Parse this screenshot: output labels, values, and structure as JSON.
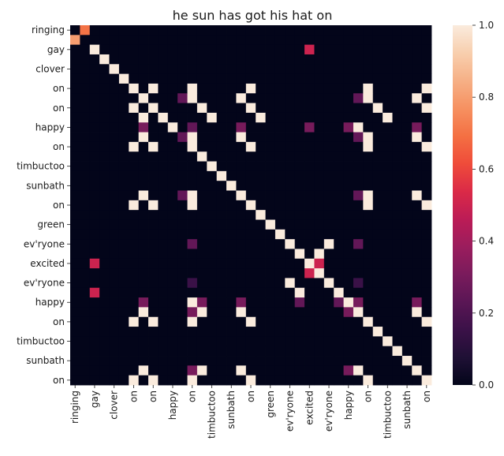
{
  "chart_data": {
    "type": "heatmap",
    "title": "he sun has got his hat on",
    "xlabel": "",
    "ylabel": "",
    "size": 37,
    "tick_labels": [
      "ringing",
      "gay",
      "clover",
      "on",
      "on",
      "happy",
      "on",
      "timbuctoo",
      "sunbath",
      "on",
      "green",
      "ev'ryone",
      "excited",
      "ev'ryone",
      "happy",
      "on",
      "timbuctoo",
      "sunbath",
      "on"
    ],
    "tick_indices": [
      0,
      2,
      4,
      6,
      8,
      10,
      12,
      14,
      16,
      18,
      20,
      22,
      24,
      26,
      28,
      30,
      32,
      34,
      36
    ],
    "colorbar": {
      "min": 0.0,
      "max": 1.0,
      "ticks": [
        "0.0",
        "0.2",
        "0.4",
        "0.6",
        "0.8",
        "1.0"
      ]
    },
    "colormap": [
      "#03051a",
      "#1f1035",
      "#3b1148",
      "#5a1655",
      "#7a1b5c",
      "#9b1d5d",
      "#bc1c56",
      "#db2a47",
      "#ef4c3a",
      "#f47043",
      "#f69161",
      "#f6b086",
      "#f8cfae",
      "#faebdd"
    ],
    "matrix": [
      [
        0,
        0.7,
        0,
        0,
        0,
        0,
        0,
        0,
        0,
        0,
        0,
        0,
        0,
        0,
        0,
        0,
        0,
        0,
        0,
        0,
        0,
        0,
        0,
        0,
        0,
        0,
        0,
        0,
        0,
        0,
        0,
        0,
        0,
        0,
        0,
        0,
        0
      ],
      [
        0.8,
        0,
        0,
        0,
        0,
        0,
        0,
        0,
        0,
        0,
        0,
        0,
        0,
        0,
        0,
        0,
        0,
        0,
        0,
        0,
        0,
        0,
        0,
        0,
        0,
        0,
        0,
        0,
        0,
        0,
        0,
        0,
        0,
        0,
        0,
        0,
        0
      ],
      [
        0,
        0,
        1,
        0,
        0,
        0,
        0,
        0,
        0,
        0,
        0,
        0,
        0,
        0,
        0,
        0,
        0,
        0,
        0,
        0,
        0,
        0,
        0,
        0,
        0.5,
        0,
        0,
        0,
        0,
        0,
        0,
        0,
        0,
        0,
        0,
        0,
        0
      ],
      [
        0,
        0,
        0,
        1,
        0,
        0,
        0,
        0,
        0,
        0,
        0,
        0,
        0,
        0,
        0,
        0,
        0,
        0,
        0,
        0,
        0,
        0,
        0,
        0,
        0,
        0,
        0,
        0,
        0,
        0,
        0,
        0,
        0,
        0,
        0,
        0,
        0
      ],
      [
        0,
        0,
        0,
        0,
        1,
        0,
        0,
        0,
        0,
        0,
        0,
        0,
        0,
        0,
        0,
        0,
        0,
        0,
        0,
        0,
        0,
        0,
        0,
        0,
        0,
        0,
        0,
        0,
        0,
        0,
        0,
        0,
        0,
        0,
        0,
        0,
        0
      ],
      [
        0,
        0,
        0,
        0,
        0,
        1,
        0,
        0,
        0,
        0,
        0,
        0,
        0,
        0,
        0,
        0,
        0,
        0,
        0,
        0,
        0,
        0,
        0,
        0,
        0,
        0,
        0,
        0,
        0,
        0,
        0,
        0,
        0,
        0,
        0,
        0,
        0
      ],
      [
        0,
        0,
        0,
        0,
        0,
        0,
        1,
        0,
        1,
        0,
        0,
        0,
        1,
        0,
        0,
        0,
        0,
        0,
        1,
        0,
        0,
        0,
        0,
        0,
        0,
        0,
        0,
        0,
        0,
        0,
        1,
        0,
        0,
        0,
        0,
        0,
        1
      ],
      [
        0,
        0,
        0,
        0,
        0,
        0,
        0,
        1,
        0,
        0,
        0,
        0.25,
        1,
        0,
        0,
        0,
        0,
        1,
        0,
        0,
        0,
        0,
        0,
        0,
        0,
        0,
        0,
        0,
        0,
        0.25,
        1,
        0,
        0,
        0,
        0,
        1,
        0
      ],
      [
        0,
        0,
        0,
        0,
        0,
        0,
        1,
        0,
        1,
        0,
        0,
        0,
        0,
        1,
        0,
        0,
        0,
        0,
        1,
        0,
        0,
        0,
        0,
        0,
        0,
        0,
        0,
        0,
        0,
        0,
        0,
        1,
        0,
        0,
        0,
        0,
        1
      ],
      [
        0,
        0,
        0,
        0,
        0,
        0,
        0,
        1,
        0,
        1,
        0,
        0,
        0,
        0,
        1,
        0,
        0,
        0,
        0,
        1,
        0,
        0,
        0,
        0,
        0,
        0,
        0,
        0,
        0,
        0,
        0,
        0,
        1,
        0,
        0,
        0,
        0
      ],
      [
        0,
        0,
        0,
        0,
        0,
        0,
        0,
        0.3,
        0,
        0,
        1,
        0,
        0.25,
        0,
        0,
        0,
        0,
        0.3,
        0,
        0,
        0,
        0,
        0,
        0,
        0.3,
        0,
        0,
        0,
        0.3,
        1,
        0,
        0,
        0,
        0,
        0,
        0.3,
        0
      ],
      [
        0,
        0,
        0,
        0,
        0,
        0,
        0,
        1,
        0,
        0,
        0,
        0.25,
        1,
        0,
        0,
        0,
        0,
        1,
        0,
        0,
        0,
        0,
        0,
        0,
        0,
        0,
        0,
        0,
        0,
        0.25,
        1,
        0,
        0,
        0,
        0,
        1,
        0
      ],
      [
        0,
        0,
        0,
        0,
        0,
        0,
        1,
        0,
        1,
        0,
        0,
        0,
        1,
        0,
        0,
        0,
        0,
        0,
        1,
        0,
        0,
        0,
        0,
        0,
        0,
        0,
        0,
        0,
        0,
        0,
        1,
        0,
        0,
        0,
        0,
        0,
        1
      ],
      [
        0,
        0,
        0,
        0,
        0,
        0,
        0,
        0,
        0,
        0,
        0,
        0,
        0,
        1,
        0,
        0,
        0,
        0,
        0,
        0,
        0,
        0,
        0,
        0,
        0,
        0,
        0,
        0,
        0,
        0,
        0,
        0,
        0,
        0,
        0,
        0,
        0
      ],
      [
        0,
        0,
        0,
        0,
        0,
        0,
        0,
        0,
        0,
        0,
        0,
        0,
        0,
        0,
        1,
        0,
        0,
        0,
        0,
        0,
        0,
        0,
        0,
        0,
        0,
        0,
        0,
        0,
        0,
        0,
        0,
        0,
        0,
        0,
        0,
        0,
        0
      ],
      [
        0,
        0,
        0,
        0,
        0,
        0,
        0,
        0,
        0,
        0,
        0,
        0,
        0,
        0,
        0,
        1,
        0,
        0,
        0,
        0,
        0,
        0,
        0,
        0,
        0,
        0,
        0,
        0,
        0,
        0,
        0,
        0,
        0,
        0,
        0,
        0,
        0
      ],
      [
        0,
        0,
        0,
        0,
        0,
        0,
        0,
        0,
        0,
        0,
        0,
        0,
        0,
        0,
        0,
        0,
        1,
        0,
        0,
        0,
        0,
        0,
        0,
        0,
        0,
        0,
        0,
        0,
        0,
        0,
        0,
        0,
        0,
        0,
        0,
        0,
        0
      ],
      [
        0,
        0,
        0,
        0,
        0,
        0,
        0,
        1,
        0,
        0,
        0,
        0.25,
        1,
        0,
        0,
        0,
        0,
        1,
        0,
        0,
        0,
        0,
        0,
        0,
        0,
        0,
        0,
        0,
        0,
        0.25,
        1,
        0,
        0,
        0,
        0,
        1,
        0
      ],
      [
        0,
        0,
        0,
        0,
        0,
        0,
        1,
        0,
        1,
        0,
        0,
        0,
        1,
        0,
        0,
        0,
        0,
        0,
        1,
        0,
        0,
        0,
        0,
        0,
        0,
        0,
        0,
        0,
        0,
        0,
        1,
        0,
        0,
        0,
        0,
        0,
        1
      ],
      [
        0,
        0,
        0,
        0,
        0,
        0,
        0,
        0,
        0,
        0,
        0,
        0,
        0,
        0,
        0,
        0,
        0,
        0,
        0,
        1,
        0,
        0,
        0,
        0,
        0,
        0,
        0,
        0,
        0,
        0,
        0,
        0,
        0,
        0,
        0,
        0,
        0
      ],
      [
        0,
        0,
        0,
        0,
        0,
        0,
        0,
        0,
        0,
        0,
        0,
        0,
        0,
        0,
        0,
        0,
        0,
        0,
        0,
        0,
        1,
        0,
        0,
        0,
        0,
        0,
        0,
        0,
        0,
        0,
        0,
        0,
        0,
        0,
        0,
        0,
        0
      ],
      [
        0,
        0,
        0,
        0,
        0,
        0,
        0,
        0,
        0,
        0,
        0,
        0,
        0,
        0,
        0,
        0,
        0,
        0,
        0,
        0,
        0,
        1,
        0,
        0,
        0,
        0,
        0,
        0,
        0,
        0,
        0,
        0,
        0,
        0,
        0,
        0,
        0
      ],
      [
        0,
        0,
        0,
        0,
        0,
        0,
        0,
        0,
        0,
        0,
        0,
        0,
        0.25,
        0,
        0,
        0,
        0,
        0,
        0,
        0,
        0,
        0,
        1,
        0,
        0,
        0,
        1,
        0,
        0,
        0.25,
        0,
        0,
        0,
        0,
        0,
        0,
        0
      ],
      [
        0,
        0,
        0,
        0,
        0,
        0,
        0,
        0,
        0,
        0,
        0,
        0,
        0,
        0,
        0,
        0,
        0,
        0,
        0,
        0,
        0,
        0,
        0,
        1,
        0,
        1,
        0,
        0,
        0,
        0,
        0,
        0,
        0,
        0,
        0,
        0,
        0
      ],
      [
        0,
        0,
        0.5,
        0,
        0,
        0,
        0,
        0,
        0,
        0,
        0,
        0,
        0,
        0,
        0,
        0,
        0,
        0,
        0,
        0,
        0,
        0,
        0,
        0,
        1,
        0.5,
        0,
        0,
        0,
        0,
        0,
        0,
        0,
        0,
        0,
        0,
        0
      ],
      [
        0,
        0,
        0,
        0,
        0,
        0,
        0,
        0,
        0,
        0,
        0,
        0,
        0,
        0,
        0,
        0,
        0,
        0,
        0,
        0,
        0,
        0,
        0,
        0,
        0.5,
        1,
        0,
        0,
        0,
        0,
        0,
        0,
        0,
        0,
        0,
        0,
        0
      ],
      [
        0,
        0,
        0,
        0,
        0,
        0,
        0,
        0,
        0,
        0,
        0,
        0,
        0.15,
        0,
        0,
        0,
        0,
        0,
        0,
        0,
        0,
        0,
        1,
        0,
        0,
        0,
        1,
        0,
        0,
        0.15,
        0,
        0,
        0,
        0,
        0,
        0,
        0
      ],
      [
        0,
        0,
        0.5,
        0,
        0,
        0,
        0,
        0,
        0,
        0,
        0,
        0,
        0,
        0,
        0,
        0,
        0,
        0,
        0,
        0,
        0,
        0,
        0,
        1,
        0,
        0,
        0,
        1,
        0,
        0,
        0,
        0,
        0,
        0,
        0,
        0,
        0
      ],
      [
        0,
        0,
        0,
        0,
        0,
        0,
        0,
        0.3,
        0,
        0,
        0,
        0,
        1,
        0.3,
        0,
        0,
        0,
        0.3,
        0,
        0,
        0,
        0,
        0,
        0.25,
        0,
        0,
        0,
        0.25,
        1,
        0.3,
        0,
        0,
        0,
        0,
        0,
        0.3,
        0
      ],
      [
        0,
        0,
        0,
        0,
        0,
        0,
        0,
        1,
        0,
        0,
        0,
        0,
        0.3,
        1,
        0,
        0,
        0,
        1,
        0,
        0,
        0,
        0,
        0,
        0,
        0,
        0,
        0,
        0,
        0.3,
        1,
        0,
        0,
        0,
        0,
        0,
        1,
        0
      ],
      [
        0,
        0,
        0,
        0,
        0,
        0,
        1,
        0,
        1,
        0,
        0,
        0,
        1,
        0,
        0,
        0,
        0,
        0,
        1,
        0,
        0,
        0,
        0,
        0,
        0,
        0,
        0,
        0,
        0,
        0,
        1,
        0,
        0,
        0,
        0,
        0,
        1
      ],
      [
        0,
        0,
        0,
        0,
        0,
        0,
        0,
        0,
        0,
        0,
        0,
        0,
        0,
        0,
        0,
        0,
        0,
        0,
        0,
        0,
        0,
        0,
        0,
        0,
        0,
        0,
        0,
        0,
        0,
        0,
        0,
        1,
        0,
        0,
        0,
        0,
        0
      ],
      [
        0,
        0,
        0,
        0,
        0,
        0,
        0,
        0,
        0,
        0,
        0,
        0,
        0,
        0,
        0,
        0,
        0,
        0,
        0,
        0,
        0,
        0,
        0,
        0,
        0,
        0,
        0,
        0,
        0,
        0,
        0,
        0,
        1,
        0,
        0,
        0,
        0
      ],
      [
        0,
        0,
        0,
        0,
        0,
        0,
        0,
        0,
        0,
        0,
        0,
        0,
        0,
        0,
        0,
        0,
        0,
        0,
        0,
        0,
        0,
        0,
        0,
        0,
        0,
        0,
        0,
        0,
        0,
        0,
        0,
        0,
        0,
        1,
        0,
        0,
        0
      ],
      [
        0,
        0,
        0,
        0,
        0,
        0,
        0,
        0,
        0,
        0,
        0,
        0,
        0,
        0,
        0,
        0,
        0,
        0,
        0,
        0,
        0,
        0,
        0,
        0,
        0,
        0,
        0,
        0,
        0,
        0,
        0,
        0,
        0,
        0,
        1,
        0,
        0
      ],
      [
        0,
        0,
        0,
        0,
        0,
        0,
        0,
        1,
        0,
        0,
        0,
        0,
        0.3,
        1,
        0,
        0,
        0,
        1,
        0,
        0,
        0,
        0,
        0,
        0,
        0,
        0,
        0,
        0,
        0.3,
        1,
        0,
        0,
        0,
        0,
        0,
        1,
        0
      ],
      [
        0,
        0,
        0,
        0,
        0,
        0,
        1,
        0,
        1,
        0,
        0,
        0,
        1,
        0,
        0,
        0,
        0,
        0,
        1,
        0,
        0,
        0,
        0,
        0,
        0,
        0,
        0,
        0,
        0,
        0,
        1,
        0,
        0,
        0,
        0,
        0,
        1
      ]
    ]
  }
}
